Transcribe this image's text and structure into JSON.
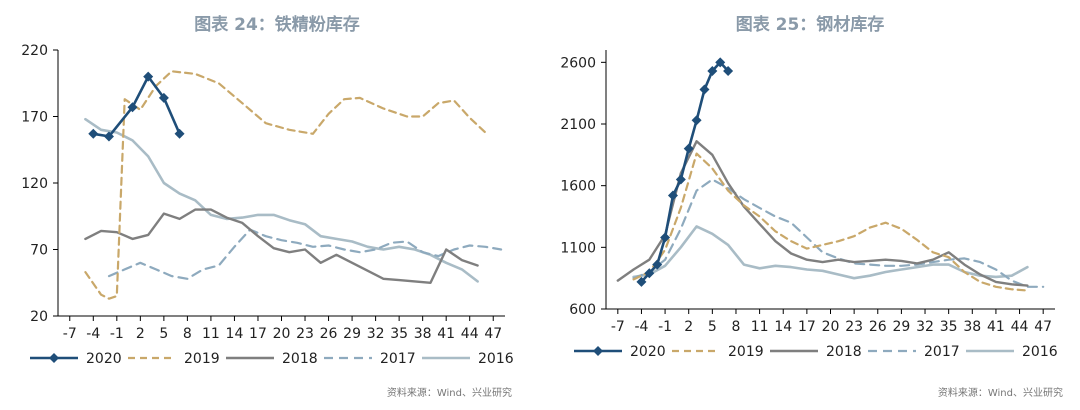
{
  "charts": [
    {
      "title": "图表 24：铁精粉库存",
      "source": "资料来源：Wind、兴业研究"
    },
    {
      "title": "图表 25：钢材库存",
      "source": "资料来源：Wind、兴业研究"
    }
  ],
  "colors": {
    "title": "#8a9aa9",
    "axis": "#000000",
    "s2020": "#1f4e79",
    "s2019": "#c9a86a",
    "s2018": "#7f7f7f",
    "s2017": "#8eaabe",
    "s2016": "#a9bcc6"
  },
  "chart_data": [
    {
      "type": "line",
      "title": "图表 24：铁精粉库存",
      "xticks": [
        -7,
        -4,
        -1,
        2,
        5,
        8,
        11,
        14,
        17,
        20,
        23,
        26,
        29,
        32,
        35,
        38,
        41,
        44,
        47
      ],
      "xlim": [
        -8.5,
        48.5
      ],
      "yticks": [
        20,
        70,
        120,
        170,
        220
      ],
      "ylim": [
        20,
        220
      ],
      "legend": [
        "2020",
        "2019",
        "2018",
        "2017",
        "2016"
      ],
      "series": [
        {
          "name": "2020",
          "x": [
            -4,
            -2,
            1,
            3,
            5,
            7
          ],
          "y": [
            157,
            155,
            177,
            200,
            184,
            157
          ]
        },
        {
          "name": "2019",
          "x": [
            -5,
            -3,
            -2,
            -1,
            0,
            2,
            4,
            6,
            9,
            12,
            15,
            18,
            21,
            24,
            26,
            28,
            30,
            33,
            36,
            38,
            40,
            42,
            44,
            46
          ],
          "y": [
            53,
            36,
            33,
            35,
            183,
            175,
            193,
            204,
            202,
            195,
            180,
            165,
            160,
            157,
            172,
            183,
            184,
            176,
            170,
            170,
            180,
            182,
            169,
            158
          ]
        },
        {
          "name": "2018",
          "x": [
            -5,
            -3,
            -1,
            1,
            3,
            5,
            7,
            9,
            11,
            13,
            15,
            17,
            19,
            21,
            23,
            25,
            27,
            29,
            31,
            33,
            35,
            37,
            39,
            41,
            43,
            45
          ],
          "y": [
            78,
            84,
            83,
            78,
            81,
            97,
            93,
            100,
            100,
            94,
            90,
            80,
            71,
            68,
            70,
            60,
            66,
            60,
            54,
            48,
            47,
            46,
            45,
            70,
            62,
            58
          ]
        },
        {
          "name": "2017",
          "x": [
            -2,
            0,
            2,
            4,
            6,
            8,
            10,
            12,
            14,
            16,
            18,
            20,
            22,
            24,
            26,
            28,
            30,
            32,
            34,
            36,
            38,
            40,
            42,
            44,
            46,
            48
          ],
          "y": [
            50,
            55,
            60,
            55,
            50,
            48,
            55,
            58,
            72,
            85,
            80,
            77,
            75,
            72,
            73,
            70,
            68,
            70,
            75,
            76,
            68,
            65,
            70,
            73,
            72,
            70
          ]
        },
        {
          "name": "2016",
          "x": [
            -5,
            -3,
            -1,
            1,
            3,
            5,
            7,
            9,
            11,
            13,
            15,
            17,
            19,
            21,
            23,
            25,
            27,
            29,
            31,
            33,
            35,
            37,
            39,
            41,
            43,
            45
          ],
          "y": [
            168,
            160,
            158,
            152,
            140,
            120,
            112,
            107,
            96,
            93,
            94,
            96,
            96,
            92,
            89,
            80,
            78,
            76,
            72,
            70,
            72,
            70,
            66,
            60,
            55,
            46
          ]
        }
      ]
    },
    {
      "type": "line",
      "title": "图表 25：钢材库存",
      "xticks": [
        -7,
        -4,
        -1,
        2,
        5,
        8,
        11,
        14,
        17,
        20,
        23,
        26,
        29,
        32,
        35,
        38,
        41,
        44,
        47
      ],
      "xlim": [
        -8.5,
        48.5
      ],
      "yticks": [
        600,
        1100,
        1600,
        2100,
        2600
      ],
      "ylim": [
        600,
        2700
      ],
      "legend": [
        "2020",
        "2019",
        "2018",
        "2017",
        "2016"
      ],
      "series": [
        {
          "name": "2020",
          "x": [
            -4,
            -3,
            -2,
            -1,
            0,
            1,
            2,
            3,
            4,
            5,
            6,
            7
          ],
          "y": [
            820,
            890,
            960,
            1180,
            1520,
            1650,
            1900,
            2130,
            2380,
            2530,
            2600,
            2530
          ]
        },
        {
          "name": "2019",
          "x": [
            -5,
            -3,
            -1,
            1,
            3,
            5,
            7,
            9,
            11,
            13,
            15,
            17,
            19,
            21,
            23,
            25,
            27,
            29,
            31,
            33,
            35,
            37,
            39,
            41,
            43,
            45
          ],
          "y": [
            840,
            900,
            1080,
            1420,
            1860,
            1740,
            1560,
            1440,
            1350,
            1230,
            1150,
            1090,
            1120,
            1150,
            1190,
            1260,
            1300,
            1250,
            1160,
            1060,
            1020,
            900,
            820,
            780,
            760,
            750
          ]
        },
        {
          "name": "2018",
          "x": [
            -7,
            -5,
            -3,
            -1,
            1,
            3,
            5,
            7,
            9,
            11,
            13,
            15,
            17,
            19,
            21,
            23,
            25,
            27,
            29,
            31,
            33,
            35,
            37,
            39,
            41,
            43,
            45
          ],
          "y": [
            830,
            920,
            1000,
            1200,
            1700,
            1960,
            1850,
            1620,
            1430,
            1290,
            1150,
            1050,
            1000,
            980,
            1000,
            980,
            990,
            1000,
            990,
            970,
            1000,
            1060,
            960,
            880,
            820,
            800,
            790
          ]
        },
        {
          "name": "2017",
          "x": [
            -5,
            -3,
            -1,
            1,
            3,
            5,
            7,
            9,
            11,
            13,
            15,
            17,
            19,
            21,
            23,
            25,
            27,
            29,
            31,
            33,
            35,
            37,
            39,
            41,
            43,
            45,
            47
          ],
          "y": [
            850,
            900,
            1000,
            1250,
            1560,
            1650,
            1580,
            1490,
            1420,
            1350,
            1300,
            1180,
            1060,
            1010,
            970,
            960,
            950,
            950,
            960,
            980,
            1000,
            1010,
            980,
            920,
            830,
            780,
            780
          ]
        },
        {
          "name": "2016",
          "x": [
            -5,
            -3,
            -1,
            1,
            3,
            5,
            7,
            9,
            11,
            13,
            15,
            17,
            19,
            21,
            23,
            25,
            27,
            29,
            31,
            33,
            35,
            37,
            39,
            41,
            43,
            45
          ],
          "y": [
            860,
            880,
            950,
            1100,
            1270,
            1210,
            1120,
            960,
            930,
            950,
            940,
            920,
            910,
            880,
            850,
            870,
            900,
            920,
            940,
            960,
            960,
            900,
            870,
            860,
            870,
            940
          ]
        }
      ]
    }
  ]
}
